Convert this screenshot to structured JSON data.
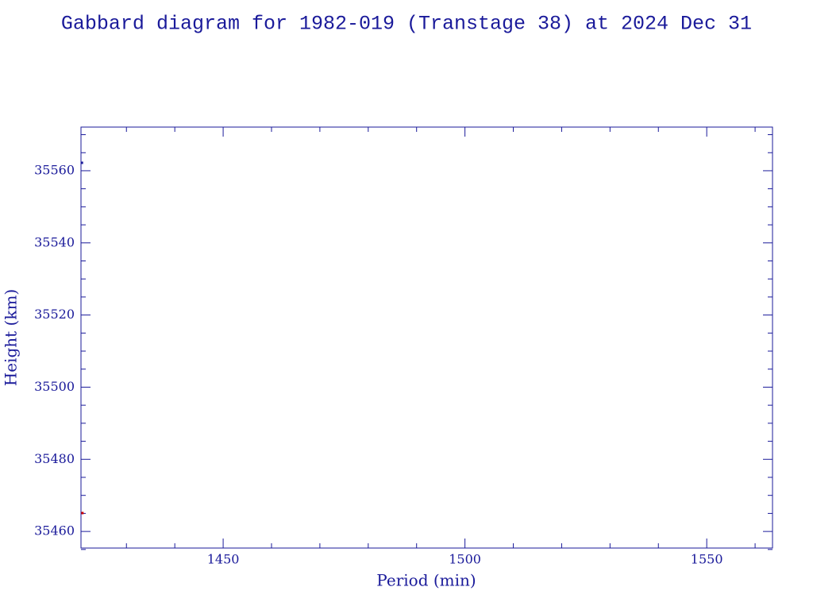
{
  "chart_data": {
    "type": "scatter",
    "title": "Gabbard diagram for 1982-019 (Transtage 38) at 2024 Dec 31",
    "x_label": "Period (min)",
    "y_label": "Height (km)",
    "xlim": [
      1420.6,
      1563.6
    ],
    "ylim": [
      35455.4,
      35572.1
    ],
    "xticks": [
      1450,
      1500,
      1550
    ],
    "yticks": [
      35460,
      35480,
      35500,
      35520,
      35540,
      35560
    ],
    "xminorticks": [
      1430,
      1440,
      1460,
      1470,
      1480,
      1490,
      1510,
      1520,
      1530,
      1540,
      1560
    ],
    "yminorticks": [
      35455,
      35465,
      35470,
      35475,
      35485,
      35490,
      35495,
      35505,
      35510,
      35515,
      35525,
      35530,
      35535,
      35545,
      35550,
      35555,
      35565,
      35570
    ],
    "series": [
      {
        "color": "#1a1a9a",
        "x": [
          1420.8
        ],
        "values": [
          35562.2
        ]
      },
      {
        "color": "#cc0000",
        "x": [
          1420.9
        ],
        "values": [
          35465.1
        ]
      }
    ]
  }
}
